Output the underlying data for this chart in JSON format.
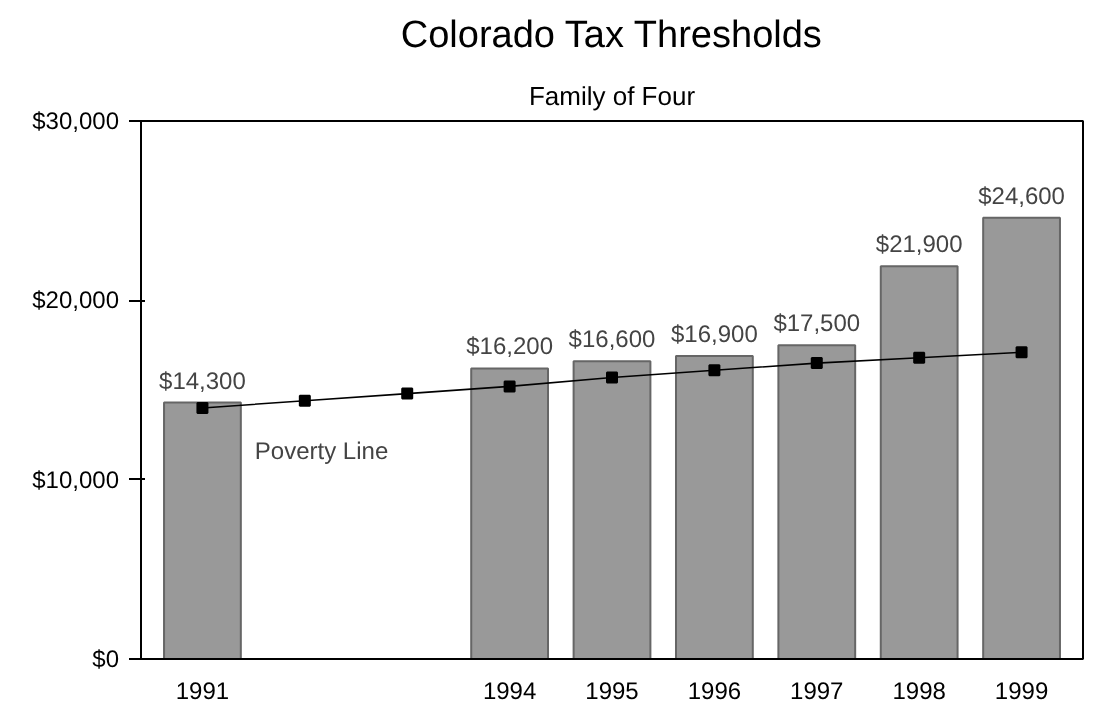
{
  "chart_data": {
    "type": "bar",
    "title": "Colorado Tax Thresholds",
    "subtitle": "Family of Four",
    "categories": [
      "1991",
      null,
      null,
      "1994",
      "1995",
      "1996",
      "1997",
      "1998",
      "1999"
    ],
    "series": [
      {
        "color": "#999999",
        "values": [
          14300,
          null,
          null,
          16200,
          16600,
          16900,
          17500,
          21900,
          24600
        ],
        "value_labels": [
          "$14,300",
          null,
          null,
          "$16,200",
          "$16,600",
          "$16,900",
          "$17,500",
          "$21,900",
          "$24,600"
        ]
      },
      {
        "type": "line",
        "name": "Poverty Line",
        "color": "#000000",
        "marker": "square",
        "line_style": "solid",
        "values": [
          14000,
          14400,
          14800,
          15200,
          15700,
          16100,
          16500,
          16800,
          17100
        ]
      }
    ],
    "ylim": [
      0,
      30000
    ],
    "yticks": [
      {
        "value": 0,
        "label": "$0"
      },
      {
        "value": 10000,
        "label": "$10,000"
      },
      {
        "value": 20000,
        "label": "$20,000"
      },
      {
        "value": 30000,
        "label": "$30,000"
      }
    ],
    "grid": false
  }
}
